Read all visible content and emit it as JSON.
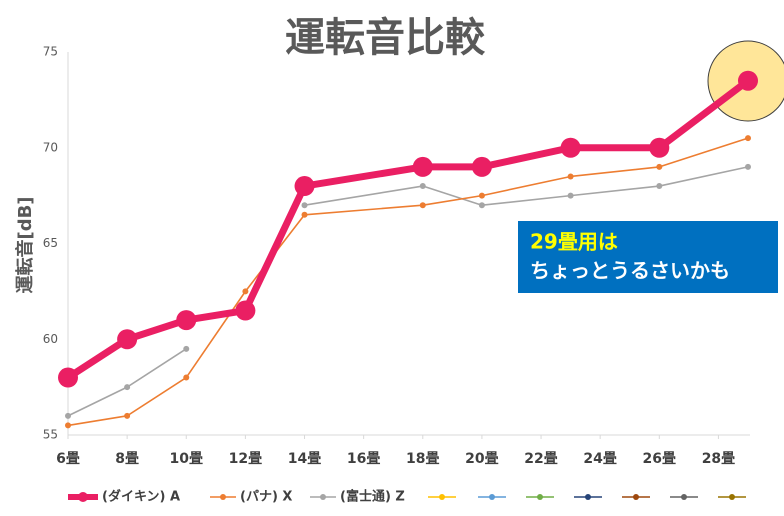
{
  "chart_data": {
    "type": "line",
    "title": "運転音比較",
    "ylabel": "運転音[dB]",
    "x": [
      6,
      8,
      10,
      12,
      14,
      18,
      20,
      23,
      26,
      29
    ],
    "xlim": [
      6,
      29
    ],
    "xticks": [
      {
        "value": 6,
        "label": "6畳"
      },
      {
        "value": 8,
        "label": "8畳"
      },
      {
        "value": 10,
        "label": "10畳"
      },
      {
        "value": 12,
        "label": "12畳"
      },
      {
        "value": 14,
        "label": "14畳"
      },
      {
        "value": 16,
        "label": "16畳"
      },
      {
        "value": 18,
        "label": "18畳"
      },
      {
        "value": 20,
        "label": "20畳"
      },
      {
        "value": 22,
        "label": "22畳"
      },
      {
        "value": 24,
        "label": "24畳"
      },
      {
        "value": 26,
        "label": "26畳"
      },
      {
        "value": 28,
        "label": "28畳"
      }
    ],
    "ylim": [
      55,
      75
    ],
    "yticks": [
      55,
      60,
      65,
      70,
      75
    ],
    "grid": false,
    "legend": "bottom",
    "series": [
      {
        "name": "(ダイキン) A",
        "color": "#ea1f63",
        "values": [
          58,
          60,
          61,
          61.5,
          68,
          69,
          69,
          70,
          70,
          73.5
        ]
      },
      {
        "name": "(パナ) X",
        "color": "#ed7d31",
        "values": [
          55.5,
          56,
          58,
          62.5,
          66.5,
          67,
          67.5,
          68.5,
          69,
          70.5
        ]
      },
      {
        "name": "(富士通) Z",
        "color": "#a5a5a5",
        "values": [
          56,
          57.5,
          59.5,
          null,
          67,
          68,
          67,
          67.5,
          68,
          69
        ]
      }
    ],
    "annotations": [
      "29畳用は",
      "ちょっとうるさいかも"
    ]
  }
}
